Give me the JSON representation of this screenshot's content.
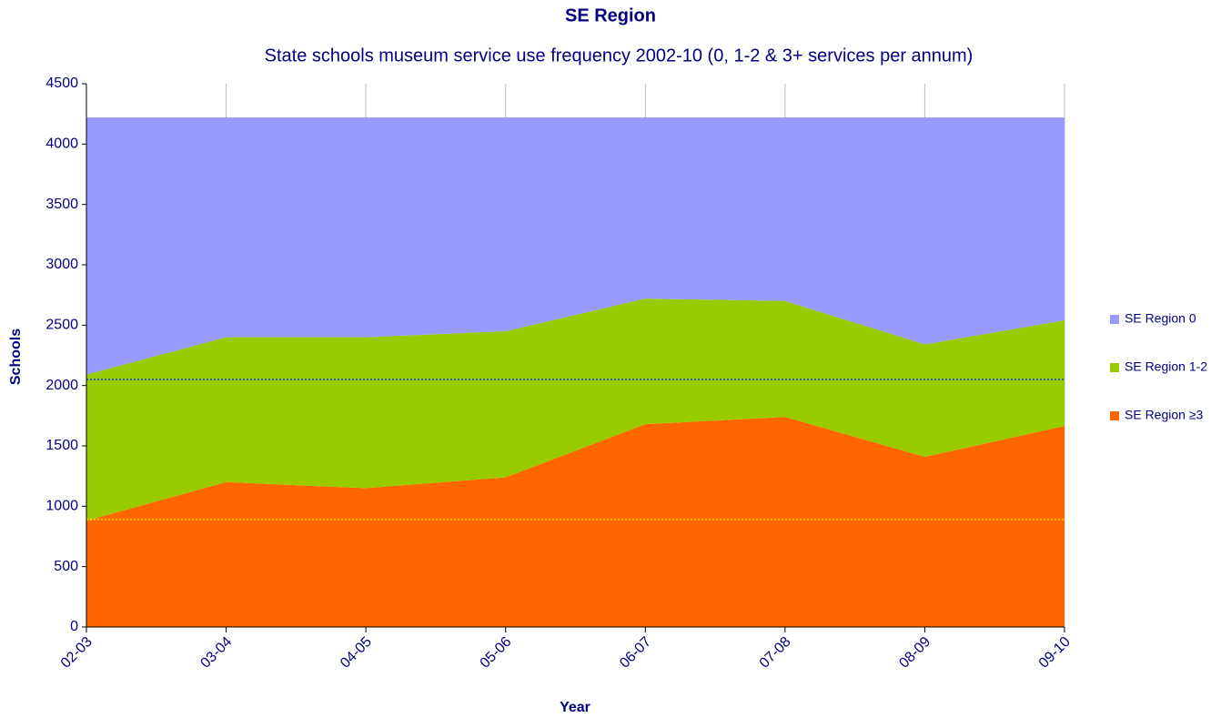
{
  "chart_data": {
    "type": "stacked_area",
    "title": "SE Region",
    "subtitle": "State schools museum service use frequency 2002-10 (0, 1-2 & 3+  services per annum)",
    "x_label": "Year",
    "y_label": "Schools",
    "categories": [
      "02-03",
      "03-04",
      "04-05",
      "05-06",
      "06-07",
      "07-08",
      "08-09",
      "09-10"
    ],
    "series": [
      {
        "name": "SE Region 0",
        "color": "#9999ff",
        "values": [
          2130,
          1820,
          1820,
          1770,
          1500,
          1520,
          1880,
          1680
        ]
      },
      {
        "name": "SE Region 1-2",
        "color": "#99cc00",
        "values": [
          1210,
          1200,
          1250,
          1210,
          1040,
          960,
          930,
          875
        ]
      },
      {
        "name": "SE Region ≥3",
        "color": "#ff6600",
        "values": [
          880,
          1200,
          1150,
          1240,
          1680,
          1740,
          1410,
          1665
        ]
      }
    ],
    "reference_lines": [
      {
        "value": 2050,
        "color": "#3355cc"
      },
      {
        "value": 890,
        "color": "#ffcc00"
      }
    ],
    "ylim": [
      0,
      4500
    ],
    "yticks": [
      0,
      500,
      1000,
      1500,
      2000,
      2500,
      3000,
      3500,
      4000,
      4500
    ],
    "grid": "x",
    "legend": "right"
  }
}
